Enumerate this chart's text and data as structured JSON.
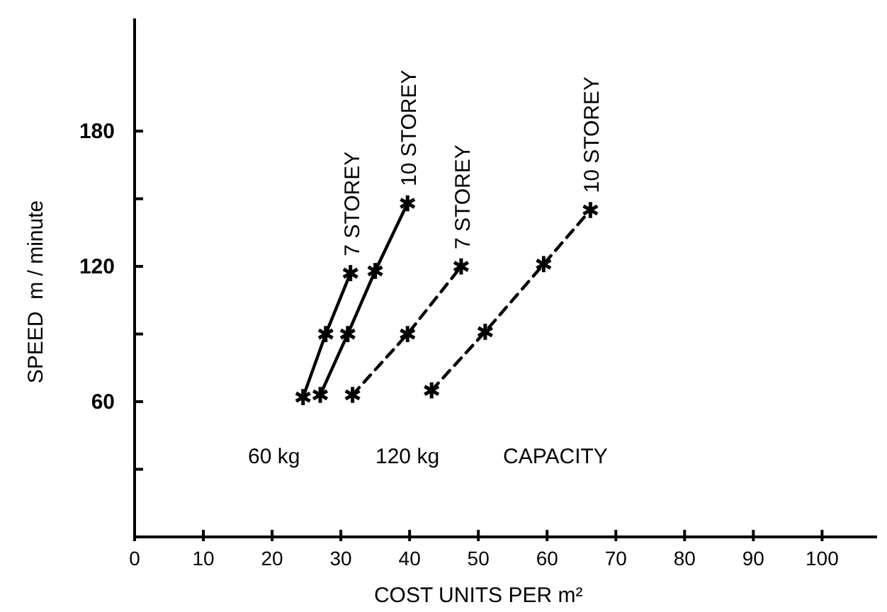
{
  "chart_data": {
    "type": "line",
    "xlabel": "COST UNITS PER m²",
    "ylabel": "SPEED  m / minute",
    "xlim": [
      0,
      108
    ],
    "xticks": [
      0,
      10,
      20,
      30,
      40,
      50,
      60,
      70,
      80,
      90,
      100
    ],
    "ylim": [
      0,
      230
    ],
    "yticks": [
      {
        "value": 30,
        "label": null
      },
      60,
      {
        "value": 90,
        "label": null
      },
      120,
      {
        "value": 150,
        "label": null
      },
      180
    ],
    "grid": false,
    "marker": "cross",
    "series": [
      {
        "name": "7 STOREY",
        "color": "#000000",
        "line_style": "solid",
        "x": [
          24.5,
          27.8,
          31.4
        ],
        "values": [
          62,
          90,
          117
        ]
      },
      {
        "name": "10 STOREY",
        "color": "#000000",
        "line_style": "solid",
        "x": [
          27,
          31,
          35,
          39.7
        ],
        "values": [
          63,
          90,
          118,
          148
        ]
      },
      {
        "name": "7 STOREY",
        "color": "#000000",
        "line_style": "dashed",
        "x": [
          31.7,
          39.7,
          47.5
        ],
        "values": [
          63,
          90,
          120
        ]
      },
      {
        "name": "10 STOREY",
        "color": "#000000",
        "line_style": "dashed",
        "x": [
          43.2,
          51,
          59.5,
          66.3
        ],
        "values": [
          65,
          91,
          121,
          145
        ]
      }
    ],
    "annotations": [
      "60 kg",
      "120 kg",
      "CAPACITY"
    ]
  }
}
